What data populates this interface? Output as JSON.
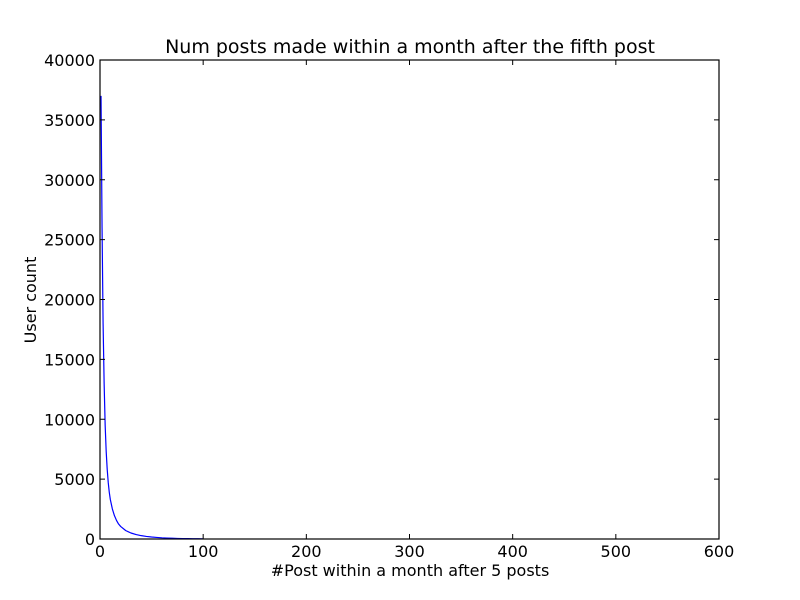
{
  "chart_data": {
    "type": "line",
    "title": "Num posts made within a month after the fifth post",
    "xlabel": "#Post within a month after 5 posts",
    "ylabel": "User count",
    "xlim": [
      0,
      600
    ],
    "ylim": [
      0,
      40000
    ],
    "x_ticks": [
      "0",
      "100",
      "200",
      "300",
      "400",
      "500",
      "600"
    ],
    "y_ticks": [
      "0",
      "5000",
      "10000",
      "15000",
      "20000",
      "25000",
      "30000",
      "35000",
      "40000"
    ],
    "grid": false,
    "legend": "none",
    "series": [
      {
        "color": "#0000ff",
        "x": [
          1,
          2,
          3,
          4,
          5,
          6,
          7,
          8,
          9,
          10,
          12,
          14,
          16,
          18,
          20,
          25,
          30,
          35,
          40,
          45,
          50,
          55,
          60,
          65,
          70,
          75,
          80,
          85,
          90,
          95,
          100
        ],
        "y": [
          37000,
          26000,
          18000,
          13000,
          9500,
          7300,
          5800,
          4700,
          3900,
          3300,
          2500,
          1950,
          1550,
          1250,
          1050,
          700,
          500,
          370,
          280,
          215,
          165,
          130,
          100,
          80,
          62,
          48,
          38,
          30,
          24,
          18,
          14
        ]
      }
    ]
  }
}
